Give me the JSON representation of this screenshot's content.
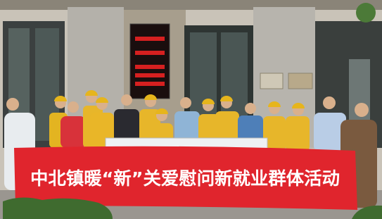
{
  "banner": {
    "text": "中北镇暖“新”关爱慰问新就业群体活动"
  }
}
